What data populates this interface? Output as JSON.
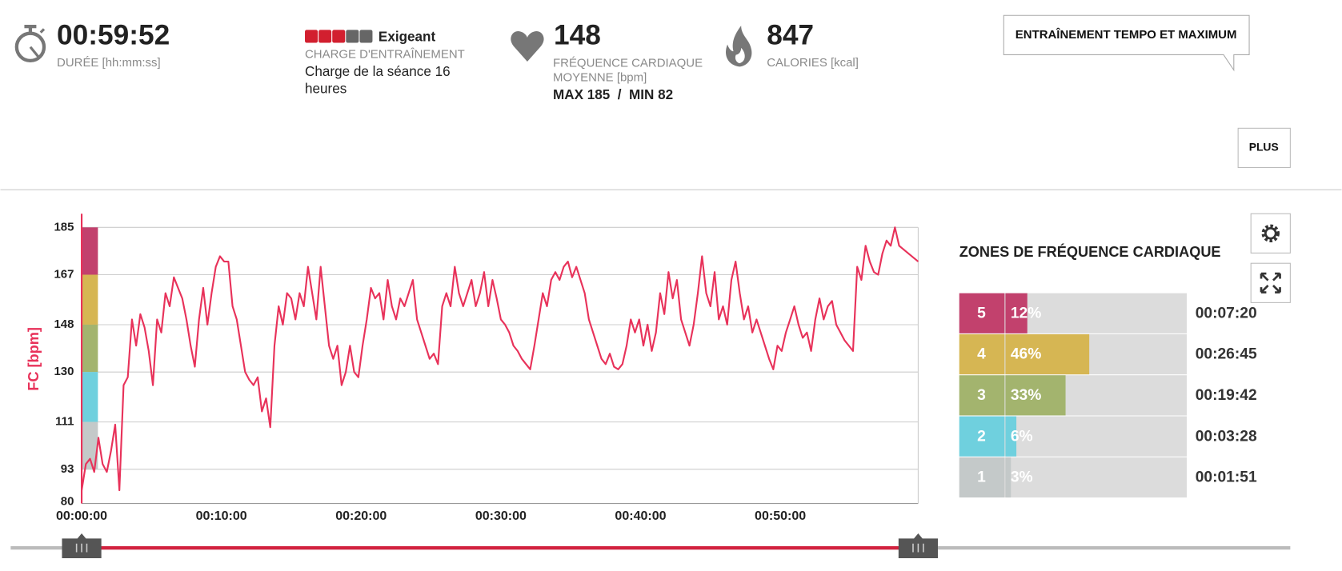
{
  "header": {
    "duration": "00:59:52",
    "duration_label": "DURÉE [hh:mm:ss]",
    "load_level": 3,
    "load_max": 5,
    "load_on_color": "#d21f2f",
    "load_off_color": "#666666",
    "load_name": "Exigeant",
    "load_label": "CHARGE D'ENTRAÎNEMENT",
    "load_text": "Charge de la séance 16 heures",
    "hr_avg": "148",
    "hr_label": "FRÉQUENCE CARDIAQUE MOYENNE [bpm]",
    "hr_range": "MAX 185  /  MIN 82",
    "calories": "847",
    "calories_label": "CALORIES [kcal]",
    "tag": "ENTRAÎNEMENT TEMPO ET MAXIMUM",
    "more": "PLUS"
  },
  "zones_title": "ZONES DE FRÉQUENCE CARDIAQUE",
  "zones": [
    {
      "zone": "5",
      "percent": 12,
      "percent_label": "12%",
      "time": "00:07:20",
      "color": "#c2416d"
    },
    {
      "zone": "4",
      "percent": 46,
      "percent_label": "46%",
      "time": "00:26:45",
      "color": "#d6b653"
    },
    {
      "zone": "3",
      "percent": 33,
      "percent_label": "33%",
      "time": "00:19:42",
      "color": "#a3b46e"
    },
    {
      "zone": "2",
      "percent": 6,
      "percent_label": "6%",
      "time": "00:03:28",
      "color": "#6fd0de"
    },
    {
      "zone": "1",
      "percent": 3,
      "percent_label": "3%",
      "time": "00:01:51",
      "color": "#c4c9c9"
    }
  ],
  "chart_data": {
    "type": "line",
    "ylabel": "FC [bpm]",
    "color": "#e8325a",
    "x": [
      0,
      18,
      36,
      54,
      72,
      90,
      108,
      126,
      144,
      162,
      180,
      198,
      216,
      234,
      252,
      270,
      288,
      306,
      324,
      342,
      360,
      378,
      396,
      414,
      432,
      450,
      468,
      486,
      504,
      522,
      540,
      558,
      576,
      594,
      612,
      630,
      648,
      666,
      684,
      702,
      720,
      738,
      756,
      774,
      792,
      810,
      828,
      846,
      864,
      882,
      900,
      918,
      936,
      954,
      972,
      990,
      1008,
      1026,
      1044,
      1062,
      1080,
      1098,
      1116,
      1134,
      1152,
      1170,
      1188,
      1206,
      1224,
      1242,
      1260,
      1278,
      1296,
      1314,
      1332,
      1350,
      1368,
      1386,
      1404,
      1422,
      1440,
      1458,
      1476,
      1494,
      1512,
      1530,
      1548,
      1566,
      1584,
      1602,
      1620,
      1638,
      1656,
      1674,
      1692,
      1710,
      1728,
      1746,
      1764,
      1782,
      1800,
      1818,
      1836,
      1854,
      1872,
      1890,
      1908,
      1926,
      1944,
      1962,
      1980,
      1998,
      2016,
      2034,
      2052,
      2070,
      2088,
      2106,
      2124,
      2142,
      2160,
      2178,
      2196,
      2214,
      2232,
      2250,
      2268,
      2286,
      2304,
      2322,
      2340,
      2358,
      2376,
      2394,
      2412,
      2430,
      2448,
      2466,
      2484,
      2502,
      2520,
      2538,
      2556,
      2574,
      2592,
      2610,
      2628,
      2646,
      2664,
      2682,
      2700,
      2718,
      2736,
      2754,
      2772,
      2790,
      2808,
      2826,
      2844,
      2862,
      2880,
      2898,
      2916,
      2934,
      2952,
      2970,
      2988,
      3006,
      3024,
      3042,
      3060,
      3078,
      3096,
      3114,
      3132,
      3150,
      3168,
      3186,
      3204,
      3222,
      3240,
      3258,
      3276,
      3294,
      3312,
      3330,
      3348,
      3366,
      3384,
      3402,
      3420,
      3438,
      3456,
      3474,
      3492,
      3510,
      3592
    ],
    "values": [
      85,
      95,
      97,
      92,
      105,
      95,
      92,
      100,
      110,
      85,
      125,
      128,
      150,
      140,
      152,
      147,
      138,
      125,
      150,
      145,
      160,
      155,
      166,
      162,
      158,
      150,
      140,
      132,
      150,
      162,
      148,
      160,
      170,
      174,
      172,
      172,
      155,
      150,
      140,
      130,
      127,
      125,
      128,
      115,
      120,
      109,
      140,
      155,
      148,
      160,
      158,
      150,
      160,
      155,
      170,
      160,
      150,
      170,
      155,
      140,
      135,
      140,
      125,
      130,
      140,
      130,
      128,
      140,
      150,
      162,
      158,
      160,
      150,
      165,
      155,
      150,
      158,
      155,
      160,
      165,
      150,
      145,
      140,
      135,
      137,
      133,
      155,
      160,
      155,
      170,
      160,
      155,
      160,
      165,
      155,
      160,
      168,
      155,
      165,
      158,
      150,
      148,
      145,
      140,
      138,
      135,
      133,
      131,
      140,
      150,
      160,
      155,
      165,
      168,
      165,
      170,
      172,
      166,
      170,
      165,
      160,
      150,
      145,
      140,
      135,
      133,
      137,
      132,
      131,
      133,
      140,
      150,
      145,
      150,
      140,
      148,
      138,
      145,
      160,
      152,
      168,
      158,
      165,
      150,
      145,
      140,
      148,
      160,
      174,
      160,
      155,
      168,
      150,
      155,
      148,
      165,
      172,
      160,
      150,
      155,
      145,
      150,
      145,
      140,
      135,
      131,
      140,
      138,
      145,
      150,
      155,
      148,
      143,
      145,
      138,
      150,
      158,
      150,
      155,
      157,
      148,
      145,
      142,
      140,
      138,
      170,
      165,
      178,
      172,
      168,
      167,
      175,
      180,
      178,
      185,
      178,
      172
    ],
    "xlim": [
      0,
      3592
    ],
    "ylim": [
      80,
      185
    ],
    "yticks": [
      80,
      93,
      111,
      130,
      148,
      167,
      185
    ],
    "xticks": [
      {
        "value": 0,
        "label": "00:00:00"
      },
      {
        "value": 600,
        "label": "00:10:00"
      },
      {
        "value": 1200,
        "label": "00:20:00"
      },
      {
        "value": 1800,
        "label": "00:30:00"
      },
      {
        "value": 2400,
        "label": "00:40:00"
      },
      {
        "value": 3000,
        "label": "00:50:00"
      }
    ],
    "grid": true
  }
}
